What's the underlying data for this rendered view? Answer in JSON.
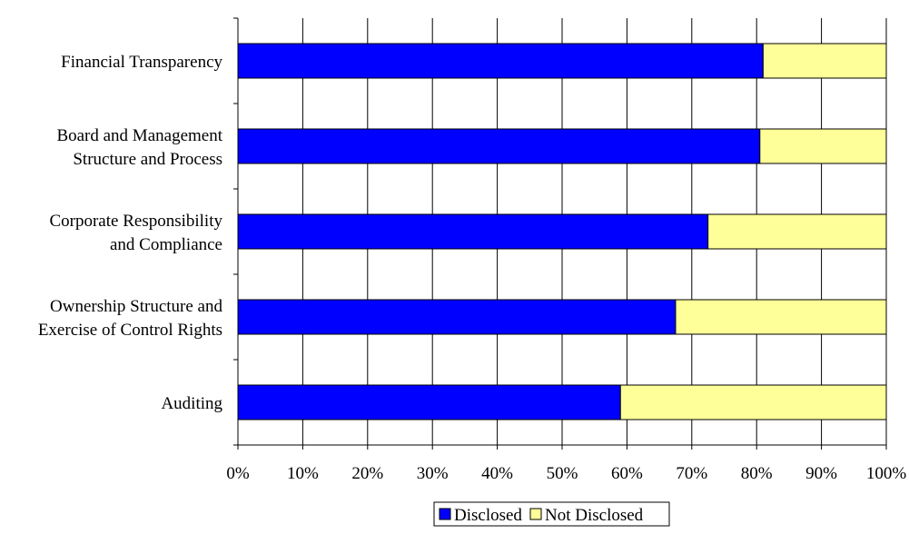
{
  "chart_data": {
    "type": "bar",
    "orientation": "horizontal",
    "stacked": true,
    "percent_stacked": true,
    "categories": [
      [
        "Financial Transparency"
      ],
      [
        "Board and Management",
        "Structure and Process"
      ],
      [
        "Corporate Responsibility",
        "and Compliance"
      ],
      [
        "Ownership Structure and",
        "Exercise of Control Rights"
      ],
      [
        "Auditing"
      ]
    ],
    "series": [
      {
        "name": "Disclosed",
        "color": "#0000FF",
        "values": [
          81,
          80.5,
          72.5,
          67.5,
          59
        ]
      },
      {
        "name": "Not Disclosed",
        "color": "#FFFF99",
        "values": [
          19,
          19.5,
          27.5,
          32.5,
          41
        ]
      }
    ],
    "xlim": [
      0,
      100
    ],
    "x_ticks": [
      "0%",
      "10%",
      "20%",
      "30%",
      "40%",
      "50%",
      "60%",
      "70%",
      "80%",
      "90%",
      "100%"
    ],
    "title": "",
    "xlabel": "",
    "ylabel": "",
    "grid": true,
    "legend_position": "bottom"
  }
}
